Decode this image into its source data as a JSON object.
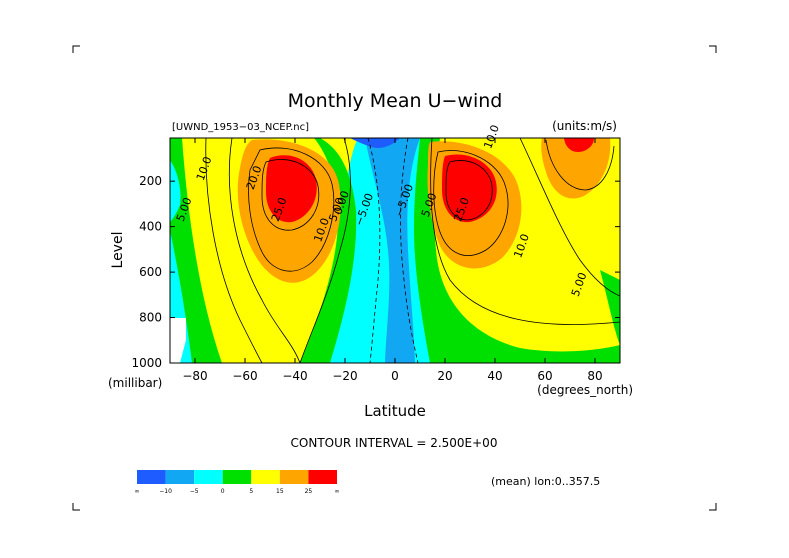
{
  "title": "Monthly Mean U−wind",
  "dataset_label": "[UWND_1953−03_NCEP.nc]",
  "units_label": "(units:m/s)",
  "contour_interval_label": "CONTOUR INTERVAL = 2.500E+00",
  "mean_label": "(mean) lon:0..357.5",
  "chart_data": {
    "type": "contour",
    "title": "Monthly Mean U−wind",
    "xlabel": "Latitude",
    "x_unit_label": "(degrees_north)",
    "ylabel": "Level",
    "y_unit_label": "(millibar)",
    "xlim": [
      -90,
      90
    ],
    "ylim": [
      1000,
      10
    ],
    "y_inverted": true,
    "x_ticks": [
      "−80",
      "−60",
      "−40",
      "−20",
      "0",
      "20",
      "40",
      "60",
      "80"
    ],
    "x_tick_values": [
      -80,
      -60,
      -40,
      -20,
      0,
      20,
      40,
      60,
      80
    ],
    "y_ticks": [
      "200",
      "400",
      "600",
      "800",
      "1000"
    ],
    "y_tick_values": [
      200,
      400,
      600,
      800,
      1000
    ],
    "contour_interval": 2.5,
    "jet_maxima": [
      {
        "lat": -40,
        "level": 200,
        "value_min": 25
      },
      {
        "lat": 28,
        "level": 200,
        "value_min": 25
      },
      {
        "lat": 74,
        "level": 10,
        "value_min": 25
      }
    ],
    "contour_labels": [
      {
        "text": "10.0",
        "lat": -75,
        "level": 150
      },
      {
        "text": "5.00",
        "lat": -83,
        "level": 330
      },
      {
        "text": "20.0",
        "lat": -55,
        "level": 190
      },
      {
        "text": "25.0",
        "lat": -45,
        "level": 330
      },
      {
        "text": "10.0",
        "lat": -28,
        "level": 420
      },
      {
        "text": "5.00",
        "lat": -22,
        "level": 330
      },
      {
        "text": "0.00",
        "lat": -20,
        "level": 300
      },
      {
        "text": "−5.00",
        "lat": -11,
        "level": 330
      },
      {
        "text": "−5.00",
        "lat": 5,
        "level": 290
      },
      {
        "text": "5.00",
        "lat": 15,
        "level": 310
      },
      {
        "text": "25.0",
        "lat": 28,
        "level": 330
      },
      {
        "text": "10.0",
        "lat": 52,
        "level": 490
      },
      {
        "text": "5.00",
        "lat": 75,
        "level": 660
      },
      {
        "text": "10.0",
        "lat": 40,
        "level": 10
      }
    ],
    "colorbar": {
      "colors": [
        "#1f5cff",
        "#12a7f2",
        "#00ffff",
        "#00e000",
        "#ffff00",
        "#ffa500",
        "#ff0000"
      ],
      "ticks": [
        "−10",
        "−5",
        "0",
        "5",
        "15",
        "25"
      ],
      "end_labels": [
        "∞",
        "∞"
      ]
    }
  }
}
